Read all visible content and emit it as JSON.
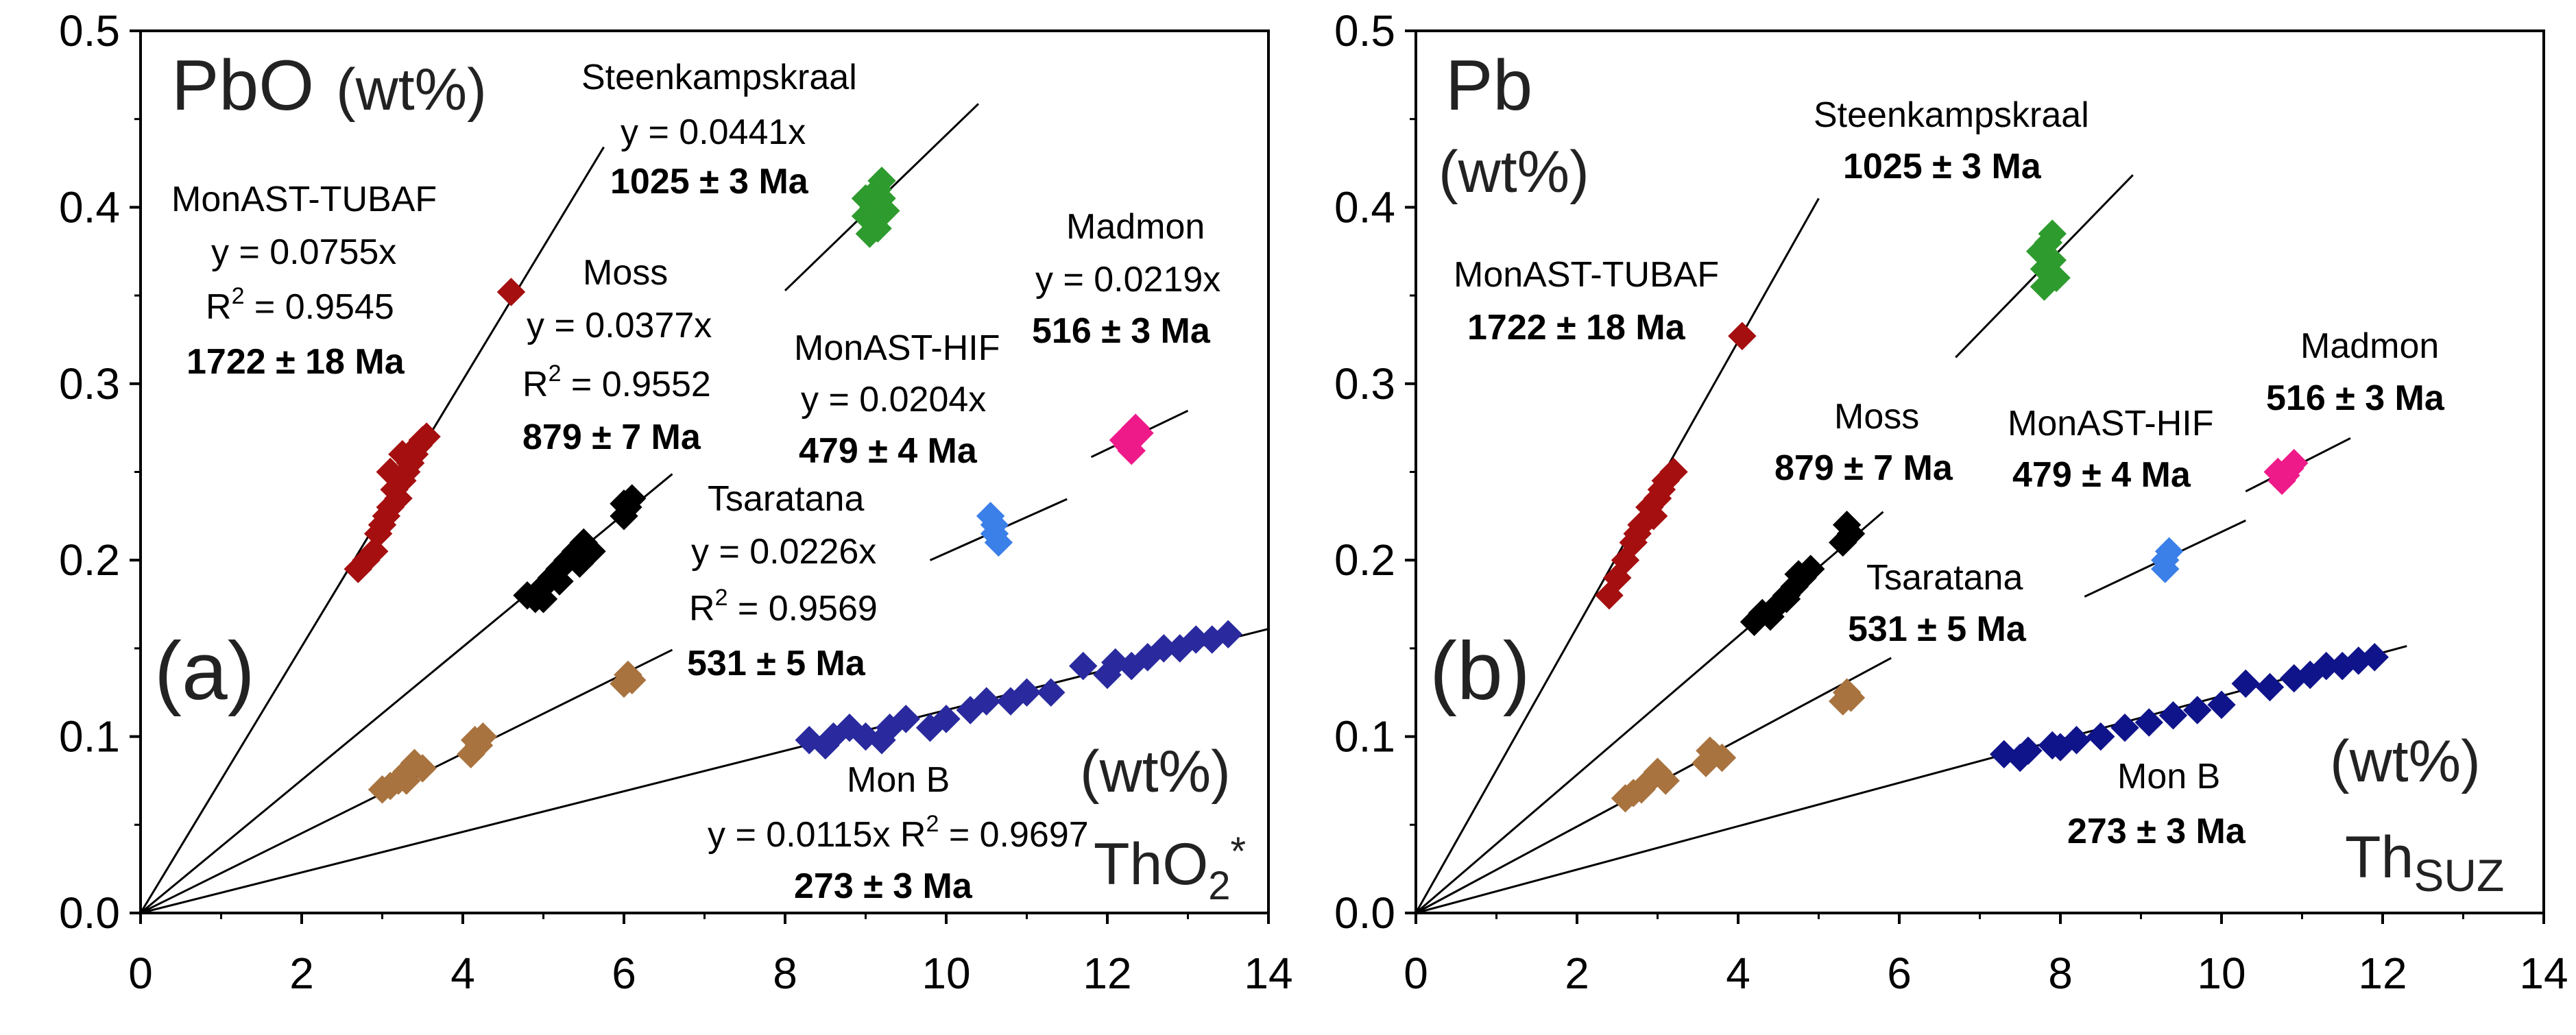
{
  "chart_data": [
    {
      "type": "scatter",
      "panel_label": "(a)",
      "y_title": "PbO",
      "y_unit": "(wt%)",
      "x_unit": "(wt%)",
      "x_title_main": "ThO",
      "x_title_sub": "2",
      "x_title_sup": "*",
      "xlim": [
        0,
        14
      ],
      "ylim": [
        0,
        0.5
      ],
      "xticks": [
        "0",
        "2",
        "4",
        "6",
        "8",
        "10",
        "12",
        "14"
      ],
      "yticks": [
        "0.0",
        "0.1",
        "0.2",
        "0.3",
        "0.4",
        "0.5"
      ],
      "series": [
        {
          "name": "MonAST-TUBAF",
          "color": "#a50f0f",
          "slope": 0.0755,
          "line_x_end": 5.75,
          "lines": [
            "MonAST-TUBAF",
            "y = 0.0755x",
            "R2 = 0.9545",
            "1722 ± 18 Ma"
          ],
          "points": [
            [
              2.7,
              0.195
            ],
            [
              2.8,
              0.2
            ],
            [
              2.9,
              0.205
            ],
            [
              2.95,
              0.215
            ],
            [
              3.0,
              0.22
            ],
            [
              3.05,
              0.225
            ],
            [
              3.1,
              0.23
            ],
            [
              3.15,
              0.24
            ],
            [
              3.2,
              0.235
            ],
            [
              3.25,
              0.245
            ],
            [
              3.3,
              0.25
            ],
            [
              3.35,
              0.255
            ],
            [
              3.4,
              0.26
            ],
            [
              3.45,
              0.265
            ],
            [
              3.5,
              0.268
            ],
            [
              3.55,
              0.27
            ],
            [
              3.25,
              0.26
            ],
            [
              3.1,
              0.25
            ],
            [
              4.6,
              0.352
            ]
          ]
        },
        {
          "name": "Moss",
          "color": "#000000",
          "slope": 0.0377,
          "line_x_end": 6.6,
          "lines": [
            "Moss",
            "y = 0.0377x",
            "R2 = 0.9552",
            "879 ± 7 Ma"
          ],
          "points": [
            [
              4.8,
              0.18
            ],
            [
              4.9,
              0.178
            ],
            [
              5.0,
              0.185
            ],
            [
              5.1,
              0.19
            ],
            [
              5.2,
              0.195
            ],
            [
              5.3,
              0.2
            ],
            [
              5.4,
              0.205
            ],
            [
              5.5,
              0.21
            ],
            [
              5.6,
              0.205
            ],
            [
              5.0,
              0.178
            ],
            [
              5.2,
              0.188
            ],
            [
              5.45,
              0.198
            ],
            [
              6.0,
              0.225
            ],
            [
              6.05,
              0.23
            ],
            [
              6.1,
              0.235
            ],
            [
              6.0,
              0.232
            ]
          ]
        },
        {
          "name": "Steenkampskraal",
          "color": "#2e9b2e",
          "slope": 0.0441,
          "line_x_start": 8.0,
          "line_x_end": 10.4,
          "lines": [
            "Steenkampskraal",
            "y = 0.0441x",
            "1025 ± 3 Ma"
          ],
          "points": [
            [
              9.0,
              0.395
            ],
            [
              9.1,
              0.4
            ],
            [
              9.2,
              0.405
            ],
            [
              9.15,
              0.41
            ],
            [
              9.05,
              0.385
            ],
            [
              9.25,
              0.398
            ],
            [
              9.1,
              0.392
            ],
            [
              9.2,
              0.415
            ],
            [
              9.15,
              0.388
            ],
            [
              9.0,
              0.405
            ]
          ]
        },
        {
          "name": "Madmon",
          "color": "#ee1a8a",
          "slope": 0.0219,
          "line_x_start": 11.8,
          "line_x_end": 13.0,
          "lines": [
            "Madmon",
            "y = 0.0219x",
            "516 ± 3 Ma"
          ],
          "points": [
            [
              12.2,
              0.268
            ],
            [
              12.3,
              0.27
            ],
            [
              12.4,
              0.272
            ],
            [
              12.25,
              0.265
            ],
            [
              12.35,
              0.275
            ],
            [
              12.3,
              0.262
            ]
          ]
        },
        {
          "name": "MonAST-HIF",
          "color": "#3b7fe8",
          "slope": 0.0204,
          "line_x_start": 9.8,
          "line_x_end": 11.5,
          "lines": [
            "MonAST-HIF",
            "y = 0.0204x",
            "479 ± 4 Ma"
          ],
          "points": [
            [
              10.6,
              0.22
            ],
            [
              10.65,
              0.21
            ],
            [
              10.6,
              0.215
            ],
            [
              10.55,
              0.225
            ]
          ]
        },
        {
          "name": "Tsaratana",
          "color": "#a8733f",
          "slope": 0.0226,
          "line_x_end": 6.6,
          "lines": [
            "Tsaratana",
            "y = 0.0226x",
            "R2 = 0.9569",
            "531 ± 5 Ma"
          ],
          "points": [
            [
              3.0,
              0.07
            ],
            [
              3.1,
              0.072
            ],
            [
              3.2,
              0.075
            ],
            [
              3.3,
              0.08
            ],
            [
              3.4,
              0.085
            ],
            [
              3.5,
              0.082
            ],
            [
              3.3,
              0.075
            ],
            [
              4.1,
              0.09
            ],
            [
              4.2,
              0.095
            ],
            [
              4.25,
              0.1
            ],
            [
              4.15,
              0.098
            ],
            [
              6.0,
              0.13
            ],
            [
              6.05,
              0.135
            ],
            [
              6.1,
              0.132
            ]
          ]
        },
        {
          "name": "Mon B",
          "color": "#2a2a9e",
          "slope": 0.0115,
          "line_x_end": 14.0,
          "lines": [
            "Mon B",
            "y = 0.0115x R2 = 0.9697",
            "273 ± 3 Ma"
          ],
          "points": [
            [
              8.3,
              0.098
            ],
            [
              8.6,
              0.1
            ],
            [
              8.8,
              0.105
            ],
            [
              9.0,
              0.1
            ],
            [
              9.3,
              0.105
            ],
            [
              9.5,
              0.11
            ],
            [
              9.8,
              0.105
            ],
            [
              10.0,
              0.11
            ],
            [
              10.3,
              0.115
            ],
            [
              10.5,
              0.12
            ],
            [
              10.8,
              0.12
            ],
            [
              11.0,
              0.125
            ],
            [
              11.3,
              0.125
            ],
            [
              11.7,
              0.14
            ],
            [
              12.0,
              0.135
            ],
            [
              12.3,
              0.14
            ],
            [
              12.5,
              0.145
            ],
            [
              12.7,
              0.15
            ],
            [
              12.9,
              0.15
            ],
            [
              13.1,
              0.155
            ],
            [
              13.3,
              0.155
            ],
            [
              13.5,
              0.158
            ],
            [
              8.5,
              0.095
            ],
            [
              9.2,
              0.098
            ],
            [
              12.1,
              0.142
            ]
          ]
        }
      ]
    },
    {
      "type": "scatter",
      "panel_label": "(b)",
      "y_title": "Pb",
      "y_unit": "(wt%)",
      "x_unit": "(wt%)",
      "x_title_main": "Th",
      "x_title_sub": "SUZ",
      "xlim": [
        0,
        14
      ],
      "ylim": [
        0,
        0.5
      ],
      "xticks": [
        "0",
        "2",
        "4",
        "6",
        "8",
        "10",
        "12",
        "14"
      ],
      "yticks": [
        "0.0",
        "0.1",
        "0.2",
        "0.3",
        "0.4",
        "0.5"
      ],
      "series": [
        {
          "name": "MonAST-TUBAF",
          "color": "#a50f0f",
          "slope": 0.081,
          "line_x_end": 5.0,
          "lines": [
            "MonAST-TUBAF",
            "1722 ± 18 Ma"
          ],
          "points": [
            [
              2.4,
              0.18
            ],
            [
              2.5,
              0.19
            ],
            [
              2.6,
              0.2
            ],
            [
              2.7,
              0.21
            ],
            [
              2.75,
              0.215
            ],
            [
              2.8,
              0.22
            ],
            [
              2.9,
              0.23
            ],
            [
              3.0,
              0.235
            ],
            [
              3.05,
              0.24
            ],
            [
              3.1,
              0.245
            ],
            [
              3.2,
              0.25
            ],
            [
              2.95,
              0.225
            ],
            [
              4.05,
              0.327
            ]
          ]
        },
        {
          "name": "Moss",
          "color": "#000000",
          "slope": 0.0392,
          "line_x_end": 5.8,
          "lines": [
            "Moss",
            "879 ± 7 Ma"
          ],
          "points": [
            [
              4.2,
              0.165
            ],
            [
              4.3,
              0.17
            ],
            [
              4.4,
              0.168
            ],
            [
              4.5,
              0.175
            ],
            [
              4.6,
              0.18
            ],
            [
              4.7,
              0.185
            ],
            [
              4.8,
              0.19
            ],
            [
              4.9,
              0.195
            ],
            [
              4.75,
              0.192
            ],
            [
              4.6,
              0.178
            ],
            [
              5.3,
              0.21
            ],
            [
              5.4,
              0.215
            ],
            [
              5.35,
              0.22
            ]
          ]
        },
        {
          "name": "Steenkampskraal",
          "color": "#2e9b2e",
          "slope": 0.047,
          "line_x_start": 6.7,
          "line_x_end": 8.9,
          "lines": [
            "Steenkampskraal",
            "1025 ± 3 Ma"
          ],
          "points": [
            [
              7.8,
              0.365
            ],
            [
              7.9,
              0.37
            ],
            [
              7.85,
              0.38
            ],
            [
              7.75,
              0.375
            ],
            [
              7.95,
              0.36
            ],
            [
              7.9,
              0.385
            ],
            [
              7.8,
              0.355
            ],
            [
              7.85,
              0.372
            ]
          ]
        },
        {
          "name": "Madmon",
          "color": "#ee1a8a",
          "slope": 0.0232,
          "line_x_start": 10.3,
          "line_x_end": 11.6,
          "lines": [
            "Madmon",
            "516 ± 3 Ma"
          ],
          "points": [
            [
              10.7,
              0.25
            ],
            [
              10.8,
              0.248
            ],
            [
              10.9,
              0.255
            ],
            [
              10.75,
              0.245
            ],
            [
              10.85,
              0.252
            ]
          ]
        },
        {
          "name": "MonAST-HIF",
          "color": "#3b7fe8",
          "slope": 0.0216,
          "line_x_start": 8.3,
          "line_x_end": 10.3,
          "lines": [
            "MonAST-HIF",
            "479 ± 4 Ma"
          ],
          "points": [
            [
              9.3,
              0.2
            ],
            [
              9.35,
              0.205
            ],
            [
              9.3,
              0.195
            ]
          ]
        },
        {
          "name": "Tsaratana",
          "color": "#a8733f",
          "slope": 0.0245,
          "line_x_end": 5.9,
          "lines": [
            "Tsaratana",
            "531 ± 5 Ma"
          ],
          "points": [
            [
              2.6,
              0.065
            ],
            [
              2.7,
              0.068
            ],
            [
              2.8,
              0.07
            ],
            [
              2.9,
              0.075
            ],
            [
              3.0,
              0.08
            ],
            [
              3.1,
              0.075
            ],
            [
              3.6,
              0.085
            ],
            [
              3.7,
              0.09
            ],
            [
              3.8,
              0.088
            ],
            [
              3.65,
              0.092
            ],
            [
              5.3,
              0.12
            ],
            [
              5.35,
              0.125
            ],
            [
              5.4,
              0.122
            ]
          ]
        },
        {
          "name": "Mon B",
          "color": "#10148a",
          "slope": 0.0123,
          "line_x_end": 12.3,
          "lines": [
            "Mon B",
            "273 ± 3 Ma"
          ],
          "points": [
            [
              7.3,
              0.09
            ],
            [
              7.6,
              0.092
            ],
            [
              7.9,
              0.095
            ],
            [
              8.2,
              0.098
            ],
            [
              8.5,
              0.1
            ],
            [
              8.8,
              0.105
            ],
            [
              9.1,
              0.108
            ],
            [
              9.4,
              0.112
            ],
            [
              9.7,
              0.115
            ],
            [
              10.0,
              0.118
            ],
            [
              10.3,
              0.13
            ],
            [
              10.6,
              0.128
            ],
            [
              10.9,
              0.133
            ],
            [
              11.1,
              0.135
            ],
            [
              11.3,
              0.14
            ],
            [
              11.5,
              0.14
            ],
            [
              11.7,
              0.143
            ],
            [
              11.9,
              0.145
            ],
            [
              7.5,
              0.088
            ],
            [
              8.0,
              0.094
            ]
          ]
        }
      ]
    }
  ]
}
